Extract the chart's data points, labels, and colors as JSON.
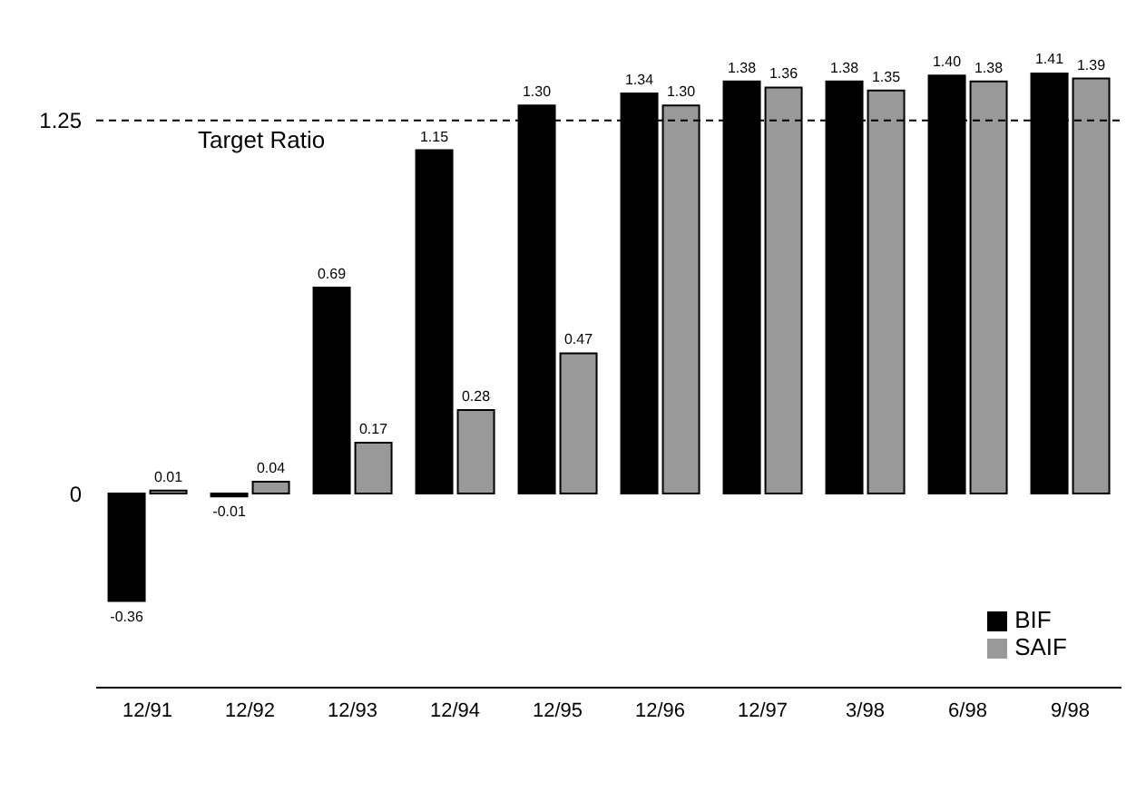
{
  "chart_data": {
    "type": "bar",
    "categories": [
      "12/91",
      "12/92",
      "12/93",
      "12/94",
      "12/95",
      "12/96",
      "12/97",
      "3/98",
      "6/98",
      "9/98"
    ],
    "series": [
      {
        "name": "BIF",
        "color": "#000000",
        "values": [
          -0.36,
          -0.01,
          0.69,
          1.15,
          1.3,
          1.34,
          1.38,
          1.38,
          1.4,
          1.41
        ],
        "value_labels": [
          "-0.36",
          "-0.01",
          "0.69",
          "1.15",
          "1.30",
          "1.34",
          "1.38",
          "1.38",
          "1.40",
          "1.41"
        ]
      },
      {
        "name": "SAIF",
        "color": "#999999",
        "values": [
          0.01,
          0.04,
          0.17,
          0.28,
          0.47,
          1.3,
          1.36,
          1.35,
          1.38,
          1.39
        ],
        "value_labels": [
          "0.01",
          "0.04",
          "0.17",
          "0.28",
          "0.47",
          "1.30",
          "1.36",
          "1.35",
          "1.38",
          "1.39"
        ]
      }
    ],
    "ylim": [
      -0.65,
      1.41
    ],
    "yticks": [
      0,
      1.25
    ],
    "ref_lines": [
      {
        "axis": "y",
        "value": 1.25,
        "label": "Target Ratio",
        "line_style": "dashed",
        "color": "#000000"
      }
    ],
    "legend": "bottom right"
  }
}
